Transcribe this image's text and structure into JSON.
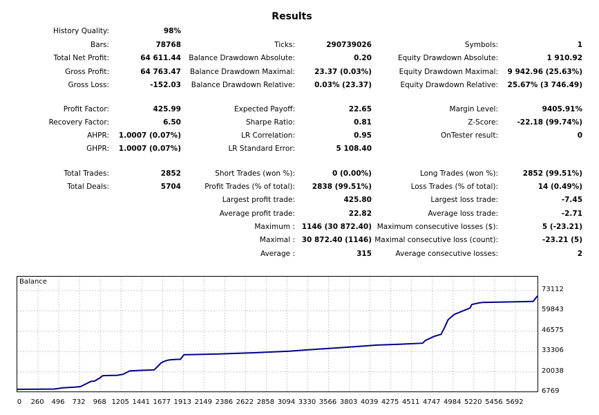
{
  "report": {
    "title": "Results",
    "history_quality": {
      "label": "History Quality:",
      "value": "98%"
    },
    "rows": [
      {
        "top": 58,
        "cells": [
          {
            "label": "Bars:",
            "value": "78768"
          },
          {
            "label": "Ticks:",
            "value": "290739026"
          },
          {
            "label": "Symbols:",
            "value": "1"
          }
        ]
      },
      {
        "top": 77,
        "cells": [
          {
            "label": "Total Net Profit:",
            "value": "64 611.44"
          },
          {
            "label": "Balance Drawdown Absolute:",
            "value": "0.20"
          },
          {
            "label": "Equity Drawdown Absolute:",
            "value": "1 910.92"
          }
        ]
      },
      {
        "top": 97,
        "cells": [
          {
            "label": "Gross Profit:",
            "value": "64 763.47"
          },
          {
            "label": "Balance Drawdown Maximal:",
            "value": "23.37 (0.03%)"
          },
          {
            "label": "Equity Drawdown Maximal:",
            "value": "9 942.96 (25.63%)"
          }
        ]
      },
      {
        "top": 116,
        "cells": [
          {
            "label": "Gross Loss:",
            "value": "-152.03"
          },
          {
            "label": "Balance Drawdown Relative:",
            "value": "0.03% (23.37)"
          },
          {
            "label": "Equity Drawdown Relative:",
            "value": "25.67% (3 746.49)"
          }
        ]
      },
      {
        "top": 151,
        "cells": [
          {
            "label": "Profit Factor:",
            "value": "425.99"
          },
          {
            "label": "Expected Payoff:",
            "value": "22.65"
          },
          {
            "label": "Margin Level:",
            "value": "9405.91%"
          }
        ]
      },
      {
        "top": 170,
        "cells": [
          {
            "label": "Recovery Factor:",
            "value": "6.50"
          },
          {
            "label": "Sharpe Ratio:",
            "value": "0.81"
          },
          {
            "label": "Z-Score:",
            "value": "-22.18 (99.74%)"
          }
        ]
      },
      {
        "top": 189,
        "cells": [
          {
            "label": "AHPR:",
            "value": "1.0007 (0.07%)"
          },
          {
            "label": "LR Correlation:",
            "value": "0.95"
          },
          {
            "label": "OnTester result:",
            "value": "0"
          }
        ]
      },
      {
        "top": 208,
        "cells": [
          {
            "label": "GHPR:",
            "value": "1.0007 (0.07%)"
          },
          {
            "label": "LR Standard Error:",
            "value": "5 108.40"
          },
          {
            "label": "",
            "value": ""
          }
        ]
      },
      {
        "top": 244,
        "cells": [
          {
            "label": "Total Trades:",
            "value": "2852"
          },
          {
            "label": "Short Trades (won %):",
            "value": "0 (0.00%)"
          },
          {
            "label": "Long Trades (won %):",
            "value": "2852 (99.51%)"
          }
        ]
      },
      {
        "top": 263,
        "cells": [
          {
            "label": "Total Deals:",
            "value": "5704"
          },
          {
            "label": "Profit Trades (% of total):",
            "value": "2838 (99.51%)"
          },
          {
            "label": "Loss Trades (% of total):",
            "value": "14 (0.49%)"
          }
        ]
      },
      {
        "top": 282,
        "cells": [
          {
            "label": "",
            "value": ""
          },
          {
            "label": "Largest profit trade:",
            "value": "425.80"
          },
          {
            "label": "Largest loss trade:",
            "value": "-7.45"
          }
        ]
      },
      {
        "top": 302,
        "cells": [
          {
            "label": "",
            "value": ""
          },
          {
            "label": "Average profit trade:",
            "value": "22.82"
          },
          {
            "label": "Average loss trade:",
            "value": "-2.71"
          }
        ]
      },
      {
        "top": 321,
        "cells": [
          {
            "label": "",
            "value": ""
          },
          {
            "label": "Maximum :",
            "value": "1146 (30 872.40)"
          },
          {
            "label": "Maximum consecutive losses ($):",
            "value": "5 (-23.21)"
          }
        ]
      },
      {
        "top": 340,
        "cells": [
          {
            "label": "",
            "value": ""
          },
          {
            "label": "Maximal :",
            "value": "30 872.40 (1146)"
          },
          {
            "label": "Maximal consecutive loss (count):",
            "value": "-23.21 (5)"
          }
        ]
      },
      {
        "top": 360,
        "cells": [
          {
            "label": "",
            "value": ""
          },
          {
            "label": "Average :",
            "value": "315"
          },
          {
            "label": "Average consecutive losses:",
            "value": "2"
          }
        ]
      }
    ]
  },
  "chart_data": {
    "type": "line",
    "title": "Balance",
    "line_color": "#00008b",
    "grid": true,
    "xlim": [
      0,
      5929
    ],
    "ylim": [
      6769,
      73112
    ],
    "y_ticks": [
      "73112",
      "59843",
      "46575",
      "33306",
      "20038",
      "6769"
    ],
    "x_ticks": [
      "0",
      "260",
      "496",
      "732",
      "968",
      "1205",
      "1441",
      "1677",
      "1913",
      "2149",
      "2386",
      "2622",
      "2858",
      "3094",
      "3330",
      "3566",
      "3803",
      "4039",
      "4275",
      "4511",
      "4747",
      "4984",
      "5220",
      "5456",
      "5692"
    ],
    "series": [
      {
        "x": [
          0,
          200,
          420,
          520,
          650,
          720,
          760,
          840,
          880,
          940,
          970,
          1000,
          1140,
          1205,
          1280,
          1400,
          1560,
          1600,
          1640,
          1680,
          1720,
          1760,
          1830,
          1860,
          1880,
          1900,
          2000,
          2300,
          2700,
          3100,
          3330,
          3800,
          4100,
          4350,
          4620,
          4650,
          4750,
          4830,
          4870,
          4910,
          4980,
          5160,
          5180,
          5260,
          5300,
          5880,
          5929
        ],
        "values": [
          8600,
          8700,
          8800,
          9600,
          10000,
          10400,
          11500,
          13800,
          14000,
          16000,
          17400,
          17600,
          17800,
          18400,
          20600,
          21000,
          21300,
          23500,
          26000,
          27000,
          27700,
          28000,
          28200,
          28200,
          29800,
          31200,
          31300,
          31700,
          32500,
          33500,
          34500,
          36300,
          37500,
          38000,
          38700,
          40500,
          43200,
          44500,
          49000,
          54000,
          57500,
          61700,
          64000,
          65000,
          65300,
          66000,
          69600
        ]
      }
    ]
  }
}
